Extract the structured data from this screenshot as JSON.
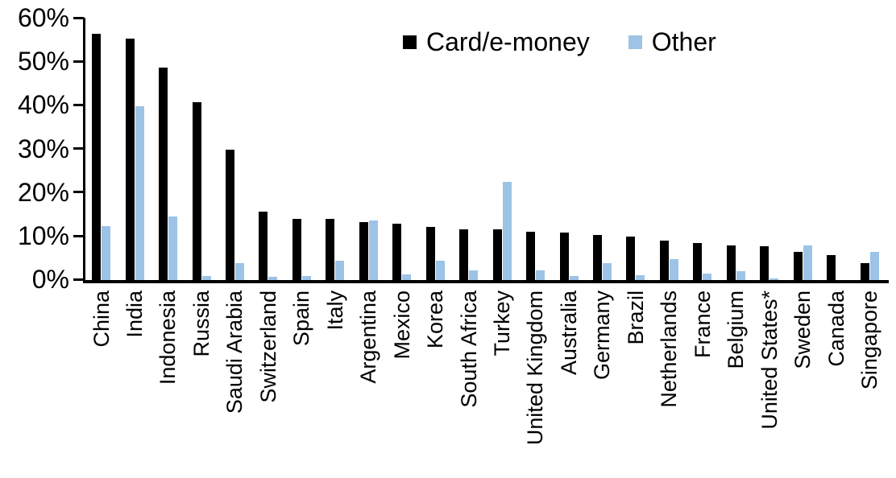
{
  "chart_data": {
    "type": "bar",
    "categories": [
      "China",
      "India",
      "Indonesia",
      "Russia",
      "Saudi Arabia",
      "Switzerland",
      "Spain",
      "Italy",
      "Argentina",
      "Mexico",
      "Korea",
      "South Africa",
      "Turkey",
      "United Kingdom",
      "Australia",
      "Germany",
      "Brazil",
      "Netherlands",
      "France",
      "Belgium",
      "United States*",
      "Sweden",
      "Canada",
      "Singapore"
    ],
    "series": [
      {
        "name": "Card/e-money",
        "color": "#000000",
        "values": [
          56.3,
          55.2,
          48.5,
          40.6,
          29.9,
          15.6,
          14.0,
          13.9,
          13.2,
          12.8,
          12.1,
          11.6,
          11.6,
          11.1,
          10.8,
          10.4,
          9.9,
          9.1,
          8.5,
          8.0,
          7.7,
          6.5,
          5.8,
          3.8
        ]
      },
      {
        "name": "Other",
        "color": "#9dc3e6",
        "values": [
          12.3,
          39.8,
          14.6,
          1.0,
          3.9,
          0.8,
          0.9,
          4.5,
          13.7,
          1.2,
          4.5,
          2.3,
          22.5,
          2.2,
          1.0,
          3.8,
          1.1,
          4.8,
          1.4,
          2.1,
          0.3,
          8.0,
          0.0,
          6.5
        ]
      }
    ],
    "title": "",
    "xlabel": "",
    "ylabel": "",
    "ylim": [
      0,
      60
    ],
    "ytick_labels": [
      "60%",
      "50%",
      "40%",
      "30%",
      "20%",
      "10%",
      "0%"
    ],
    "ytick_values": [
      60,
      50,
      40,
      30,
      20,
      10,
      0
    ],
    "grid": false,
    "legend_position": "top-center"
  }
}
